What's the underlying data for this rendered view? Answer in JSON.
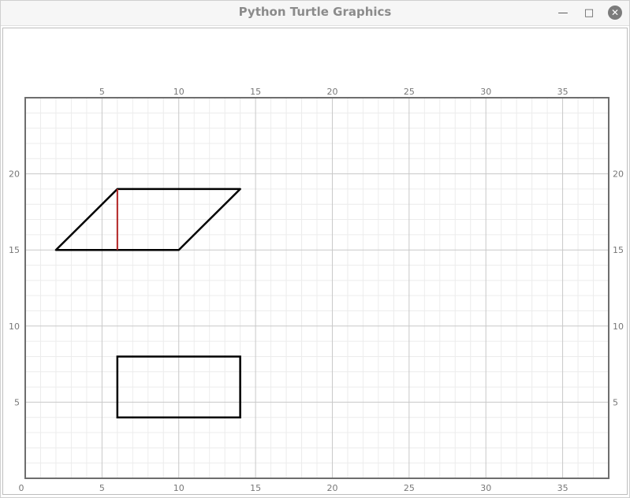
{
  "window": {
    "title": "Python Turtle Graphics",
    "controls": [
      "minimize-icon",
      "maximize-icon",
      "close-icon"
    ]
  },
  "colors": {
    "grid_minor": "#ececec",
    "grid_major": "#c8c8c8",
    "frame": "#6e6e6e",
    "shape_stroke": "#000000",
    "height_marker": "#b22222",
    "tick_label": "#777777"
  },
  "canvas": {
    "x_range": [
      0,
      38
    ],
    "y_range": [
      0,
      25
    ],
    "top_tick_labels": [
      "5",
      "10",
      "15",
      "20",
      "25",
      "30",
      "35"
    ],
    "bottom_tick_labels": [
      "0",
      "5",
      "10",
      "15",
      "20",
      "25",
      "30",
      "35"
    ],
    "left_tick_labels": [
      "20",
      "15",
      "10",
      "5"
    ],
    "right_tick_labels": [
      "20",
      "15",
      "10",
      "5"
    ],
    "grid": true
  },
  "shapes": {
    "parallelogram": [
      [
        2,
        15
      ],
      [
        10,
        15
      ],
      [
        14,
        19
      ],
      [
        6,
        19
      ]
    ],
    "height_segment": [
      [
        6,
        15
      ],
      [
        6,
        19
      ]
    ],
    "rectangle": [
      [
        6,
        4
      ],
      [
        14,
        4
      ],
      [
        14,
        8
      ],
      [
        6,
        8
      ]
    ]
  }
}
